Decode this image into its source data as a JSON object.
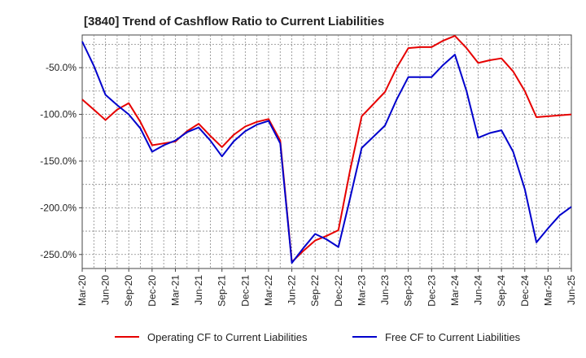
{
  "chart_data": {
    "type": "line",
    "title": "[3840]  Trend of Cashflow Ratio to Current Liabilities",
    "xlabel": "",
    "ylabel": "",
    "x_tick_labels": [
      "Mar-20",
      "Jun-20",
      "Sep-20",
      "Dec-20",
      "Mar-21",
      "Jun-21",
      "Sep-21",
      "Dec-21",
      "Mar-22",
      "Jun-22",
      "Sep-22",
      "Dec-22",
      "Mar-23",
      "Jun-23",
      "Sep-23",
      "Dec-23",
      "Mar-24",
      "Jun-24",
      "Sep-24",
      "Dec-24",
      "Mar-25",
      "Jun-25"
    ],
    "y_ticks": [
      -50,
      -100,
      -150,
      -200,
      -250
    ],
    "y_tick_labels": [
      "-50.0%",
      "-100.0%",
      "-150.0%",
      "-200.0%",
      "-250.0%"
    ],
    "ylim": [
      -265,
      -15
    ],
    "grid": true,
    "legend_position": "bottom",
    "series": [
      {
        "name": "Operating CF to Current Liabilities",
        "color": "#e60000",
        "values": [
          -84,
          -95,
          -106,
          -95,
          -88,
          -108,
          -133,
          -131,
          -129,
          -118,
          -110,
          -123,
          -135,
          -122,
          -113,
          -108,
          -105,
          -128,
          -258,
          -246,
          -235,
          -230,
          -224,
          -160,
          -102,
          -89,
          -76,
          -50,
          -29,
          -28,
          -28,
          -21,
          -16,
          -29,
          -45,
          -42,
          -40,
          -54,
          -75,
          -103,
          -102,
          -101,
          -100
        ]
      },
      {
        "name": "Free CF to Current Liabilities",
        "color": "#0000cc",
        "values": [
          -22,
          -48,
          -79,
          -90,
          -100,
          -115,
          -140,
          -133,
          -128,
          -119,
          -114,
          -128,
          -145,
          -129,
          -118,
          -111,
          -107,
          -131,
          -259,
          -243,
          -228,
          -234,
          -242,
          -190,
          -136,
          -124,
          -112,
          -84,
          -60,
          -60,
          -60,
          -47,
          -36,
          -75,
          -125,
          -120,
          -117,
          -140,
          -180,
          -237,
          -222,
          -208,
          -199
        ]
      }
    ]
  }
}
